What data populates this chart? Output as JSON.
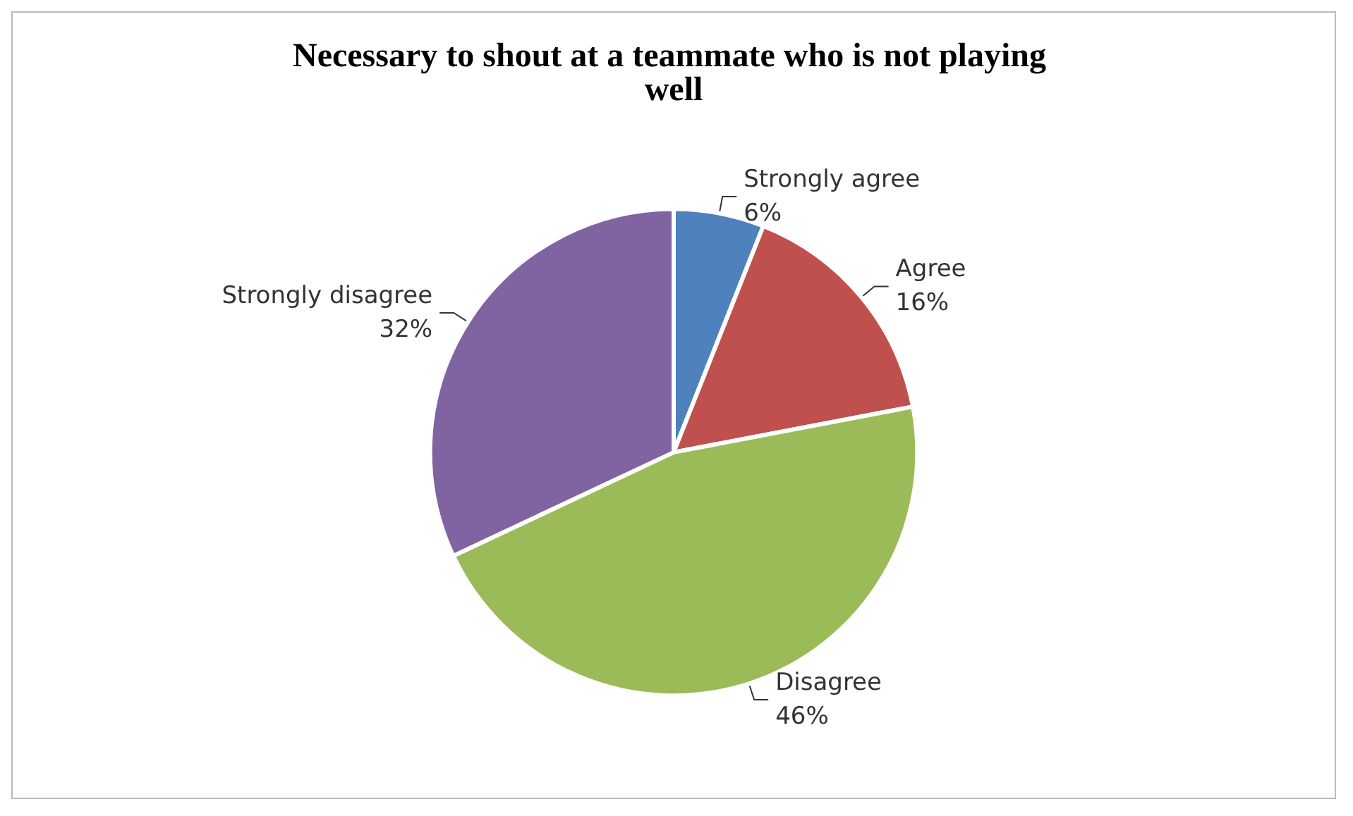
{
  "chart_data": {
    "type": "pie",
    "title": "Necessary to shout at a teammate who is not playing well",
    "categories": [
      "Strongly agree",
      "Agree",
      "Disagree",
      "Strongly disagree"
    ],
    "values": [
      6,
      16,
      46,
      32
    ],
    "value_labels": [
      "6%",
      "16%",
      "46%",
      "32%"
    ],
    "colors": [
      "#4f81bd",
      "#c0504d",
      "#9bbb59",
      "#8064a2"
    ]
  }
}
